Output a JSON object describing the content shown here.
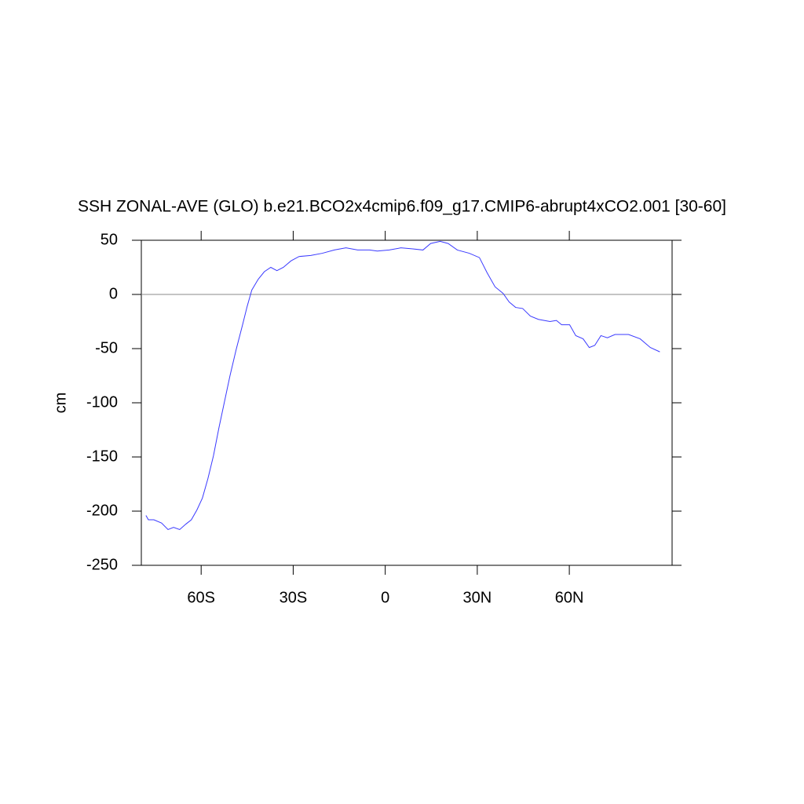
{
  "chart_data": {
    "type": "line",
    "title": "SSH ZONAL-AVE (GLO) b.e21.BCO2x4cmip6.f09_g17.CMIP6-abrupt4xCO2.001 [30-60]",
    "ylabel": "cm",
    "x": [
      -78,
      -77.2,
      -75.4,
      -72.9,
      -70.8,
      -69,
      -67,
      -65,
      -63.2,
      -61.4,
      -59.6,
      -57.8,
      -56,
      -54.2,
      -52.4,
      -50.6,
      -48.6,
      -46.5,
      -45,
      -43.5,
      -41.4,
      -39.4,
      -37.3,
      -35.3,
      -33.2,
      -30.7,
      -28.1,
      -24.3,
      -20.5,
      -16.6,
      -12.8,
      -9,
      -5.1,
      -2.6,
      1.3,
      5.1,
      9,
      12.3,
      14.8,
      17.9,
      20.5,
      23.5,
      27.4,
      30.7,
      33.2,
      35.8,
      38.4,
      40.4,
      42.5,
      44.8,
      47.3,
      49.9,
      53.7,
      55.8,
      57.5,
      60.1,
      62.1,
      64.5,
      66.5,
      68.3,
      70.3,
      72.4,
      74.9,
      79.3,
      83.1,
      86.4,
      89.5
    ],
    "series": [
      {
        "name": "SSH",
        "color": "#3a3aff",
        "values": [
          -204,
          -208,
          -208,
          -211,
          -217,
          -215,
          -217,
          -212,
          -208,
          -199,
          -188,
          -170,
          -149,
          -123,
          -99,
          -75,
          -51,
          -28,
          -11,
          4,
          14,
          21,
          25,
          22,
          25,
          31,
          35,
          36,
          38,
          41,
          43,
          41,
          41,
          40,
          41,
          43,
          42,
          41,
          47,
          49,
          47,
          41,
          38,
          34,
          20,
          7,
          1,
          -7,
          -12,
          -13,
          -20,
          -23,
          -25,
          -24,
          -28,
          -28,
          -38,
          -41,
          -49,
          -47,
          -38,
          -40,
          -37,
          -37,
          -41,
          -49,
          -53
        ]
      }
    ],
    "xlim": [
      -79.5,
      93.5
    ],
    "xticks": [
      {
        "value": -60,
        "label": "60S"
      },
      {
        "value": -30,
        "label": "30S"
      },
      0,
      {
        "value": 30,
        "label": "30N"
      },
      {
        "value": 60,
        "label": "60N"
      }
    ],
    "ylim": [
      -250,
      50
    ],
    "yticks": [
      -250,
      -200,
      -150,
      -100,
      -50,
      0,
      50
    ],
    "reference_line": 0
  }
}
